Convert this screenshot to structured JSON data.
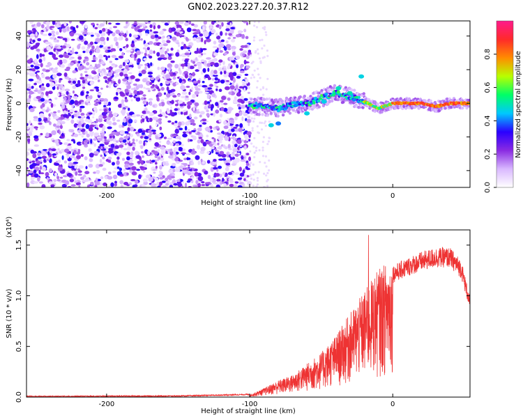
{
  "title": "GN02.2023.227.20.37.R12",
  "chart_data": [
    {
      "type": "heatmap",
      "xlabel": "Height of straight line (km)",
      "ylabel": "Frequency (Hz)",
      "xlim": [
        -256,
        54
      ],
      "ylim": [
        -50,
        49
      ],
      "xticks": [
        -200,
        -100,
        0
      ],
      "yticks": [
        -40,
        -20,
        0,
        20,
        40
      ],
      "colorbar": {
        "label": "Normalized spectral amplitude",
        "range": [
          0.0,
          1.0
        ],
        "ticks": [
          0.0,
          0.2,
          0.4,
          0.6,
          0.8
        ],
        "colors": [
          "#ffffff",
          "#d9b8ff",
          "#8a2be2",
          "#2a00ff",
          "#00c8ff",
          "#00ff66",
          "#b8ff00",
          "#ff8c00",
          "#ff2a2a",
          "#ff1a8c"
        ]
      },
      "regions": [
        {
          "name": "noise",
          "x_range": [
            -256,
            -100
          ],
          "y_range": [
            -50,
            49
          ],
          "amplitude_range": [
            0.05,
            0.35
          ]
        },
        {
          "name": "signal",
          "x_range": [
            -100,
            54
          ],
          "center_freq_hz": [
            {
              "x": -100,
              "f": -1
            },
            {
              "x": -90,
              "f": -2
            },
            {
              "x": -80,
              "f": -3
            },
            {
              "x": -70,
              "f": -1
            },
            {
              "x": -60,
              "f": 0
            },
            {
              "x": -50,
              "f": 3
            },
            {
              "x": -40,
              "f": 6
            },
            {
              "x": -30,
              "f": 4
            },
            {
              "x": -20,
              "f": 1
            },
            {
              "x": -10,
              "f": -3
            },
            {
              "x": 0,
              "f": 0
            },
            {
              "x": 20,
              "f": 0
            },
            {
              "x": 30,
              "f": -2
            },
            {
              "x": 40,
              "f": 0
            },
            {
              "x": 54,
              "f": 0
            }
          ]
        }
      ]
    },
    {
      "type": "line",
      "xlabel": "Height of straight line (km)",
      "ylabel": "SNR (10 * v/v)",
      "y_multiplier": "(x10⁴)",
      "xlim": [
        -256,
        54
      ],
      "ylim": [
        0,
        1.65
      ],
      "xticks": [
        -200,
        -100,
        0
      ],
      "yticks": [
        0.0,
        0.5,
        1.0,
        1.5
      ],
      "color": "#ee3333",
      "envelope": [
        {
          "x": -256,
          "y": 0.0
        },
        {
          "x": -150,
          "y": 0.005
        },
        {
          "x": -100,
          "y": 0.02
        },
        {
          "x": -90,
          "y": 0.08
        },
        {
          "x": -80,
          "y": 0.15
        },
        {
          "x": -70,
          "y": 0.2
        },
        {
          "x": -60,
          "y": 0.3
        },
        {
          "x": -50,
          "y": 0.4
        },
        {
          "x": -40,
          "y": 0.55
        },
        {
          "x": -30,
          "y": 0.75
        },
        {
          "x": -20,
          "y": 0.95
        },
        {
          "x": -10,
          "y": 1.15
        },
        {
          "x": 0,
          "y": 1.25
        },
        {
          "x": 10,
          "y": 1.32
        },
        {
          "x": 20,
          "y": 1.38
        },
        {
          "x": 30,
          "y": 1.42
        },
        {
          "x": 40,
          "y": 1.42
        },
        {
          "x": 48,
          "y": 1.3
        },
        {
          "x": 54,
          "y": 0.95
        }
      ],
      "peak": {
        "x": -17,
        "y": 1.6
      }
    }
  ]
}
